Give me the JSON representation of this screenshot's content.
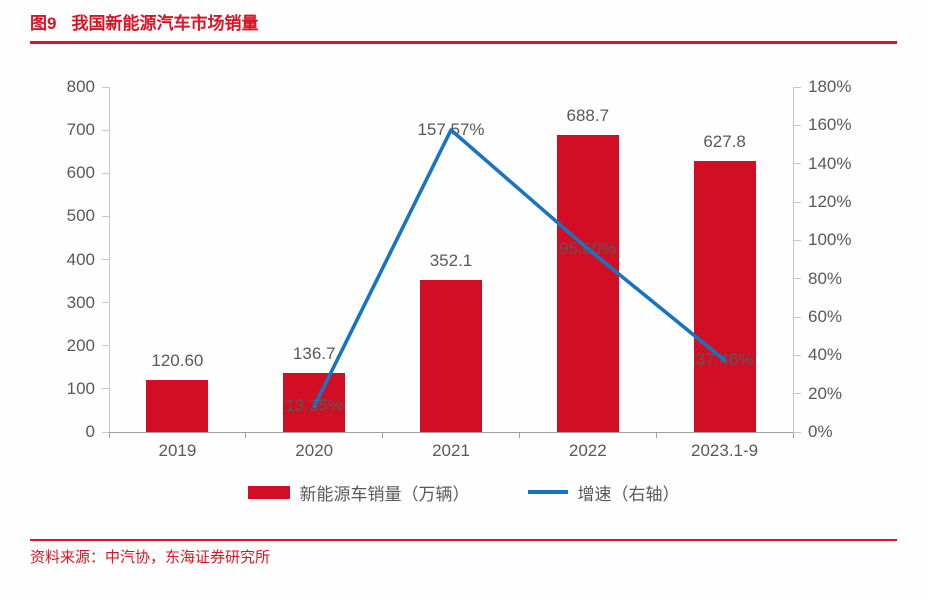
{
  "header": {
    "figure_label": "图9",
    "title": "我国新能源汽车市场销量"
  },
  "footer": {
    "source": "资料来源：中汽协，东海证券研究所"
  },
  "colors": {
    "red": "#D91426",
    "bar": "#D20E24",
    "line": "#1874C0",
    "axis_text": "#595959",
    "axis_line": "#C6C6C6",
    "x_axis_line": "#A0A0A0"
  },
  "legend": [
    {
      "type": "bar",
      "label": "新能源车销量（万辆）"
    },
    {
      "type": "line",
      "label": "增速（右轴）"
    }
  ],
  "chart_data": {
    "type": "bar+line combo",
    "categories": [
      "2019",
      "2020",
      "2021",
      "2022",
      "2023.1-9"
    ],
    "series": [
      {
        "name": "新能源车销量（万辆）",
        "type": "bar",
        "axis": "left",
        "values": [
          120.6,
          136.7,
          352.1,
          688.7,
          627.8
        ],
        "labels": [
          "120.60",
          "136.7",
          "352.1",
          "688.7",
          "627.8"
        ]
      },
      {
        "name": "增速（右轴）",
        "type": "line",
        "axis": "right",
        "values": [
          null,
          13.35,
          157.57,
          95.6,
          37.46
        ],
        "labels": [
          null,
          "13.35%",
          "157.57%",
          "95.60%",
          "37.46%"
        ]
      }
    ],
    "left_axis": {
      "min": 0,
      "max": 800,
      "step": 100,
      "tick_labels": [
        "800",
        "700",
        "600",
        "500",
        "400",
        "300",
        "200",
        "100",
        "0"
      ]
    },
    "right_axis": {
      "min": 0,
      "max": 180,
      "step": 20,
      "tick_labels": [
        "180%",
        "160%",
        "140%",
        "120%",
        "100%",
        "80%",
        "60%",
        "40%",
        "20%",
        "0%"
      ]
    },
    "grid": "none",
    "legend_position": "bottom-center"
  }
}
